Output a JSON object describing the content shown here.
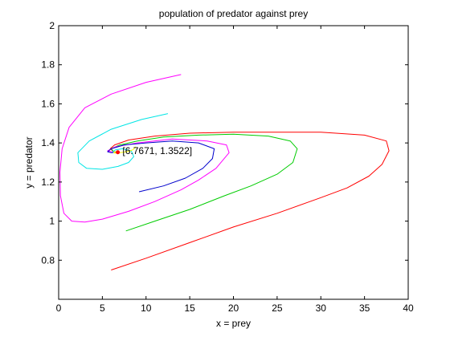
{
  "chart_data": {
    "type": "line",
    "title": "population of predator against prey",
    "xlabel": "x = prey",
    "ylabel": "y = predator",
    "xlim": [
      0,
      40
    ],
    "ylim": [
      0.6,
      2
    ],
    "xticks": [
      0,
      5,
      10,
      15,
      20,
      25,
      30,
      35,
      40
    ],
    "yticks": [
      0.8,
      1,
      1.2,
      1.4,
      1.6,
      1.8,
      2
    ],
    "xtick_labels": [
      "0",
      "5",
      "10",
      "15",
      "20",
      "25",
      "30",
      "35",
      "40"
    ],
    "ytick_labels": [
      "0.8",
      "1",
      "1.2",
      "1.4",
      "1.6",
      "1.8",
      "2"
    ],
    "grid": false,
    "equilibrium": {
      "x": 6.7671,
      "y": 1.3522,
      "color": "#ff0000"
    },
    "annotation": {
      "text": "[6.7671, 1.3522]",
      "x": 7.3,
      "y": 1.36
    },
    "series": [
      {
        "color": "#ff0000",
        "x": [
          6.0,
          10.0,
          15.0,
          20.0,
          25.0,
          30.0,
          33.0,
          35.5,
          37.0,
          37.8,
          37.5,
          35.0,
          30.0,
          25.0,
          20.0,
          15.0,
          11.0,
          8.0,
          6.4,
          5.9,
          6.3,
          6.76
        ],
        "y": [
          0.75,
          0.81,
          0.89,
          0.97,
          1.04,
          1.12,
          1.17,
          1.23,
          1.29,
          1.36,
          1.41,
          1.44,
          1.455,
          1.455,
          1.455,
          1.45,
          1.435,
          1.415,
          1.39,
          1.37,
          1.355,
          1.352
        ]
      },
      {
        "color": "#00cc00",
        "x": [
          7.7,
          11.0,
          15.0,
          19.0,
          22.0,
          25.0,
          26.8,
          27.3,
          26.5,
          24.0,
          20.0,
          16.0,
          12.0,
          9.0,
          7.0,
          6.0,
          6.3,
          6.76
        ],
        "y": [
          0.95,
          1.0,
          1.06,
          1.13,
          1.18,
          1.24,
          1.3,
          1.37,
          1.41,
          1.435,
          1.445,
          1.44,
          1.43,
          1.41,
          1.39,
          1.37,
          1.355,
          1.352
        ]
      },
      {
        "color": "#ff00ff",
        "x": [
          14.0,
          10.0,
          6.0,
          3.0,
          1.2,
          0.4,
          0.15,
          0.2,
          0.6,
          1.5,
          3.0,
          5.0,
          8.0,
          11.0,
          14.0,
          16.0,
          18.0,
          19.5,
          19.2,
          17.0,
          13.0,
          9.0,
          6.5,
          5.6,
          6.0,
          6.76
        ],
        "y": [
          1.75,
          1.71,
          1.65,
          1.58,
          1.48,
          1.37,
          1.25,
          1.13,
          1.04,
          1.0,
          0.995,
          1.01,
          1.05,
          1.1,
          1.16,
          1.21,
          1.27,
          1.35,
          1.39,
          1.41,
          1.42,
          1.4,
          1.38,
          1.36,
          1.355,
          1.352
        ]
      },
      {
        "color": "#00e5e5",
        "x": [
          12.5,
          9.5,
          6.0,
          3.5,
          2.2,
          2.3,
          3.2,
          5.0,
          6.8,
          8.0,
          8.6,
          8.3,
          7.3,
          6.5,
          6.2,
          6.5,
          6.76
        ],
        "y": [
          1.55,
          1.52,
          1.47,
          1.41,
          1.35,
          1.3,
          1.27,
          1.265,
          1.28,
          1.3,
          1.33,
          1.36,
          1.37,
          1.365,
          1.355,
          1.35,
          1.352
        ]
      },
      {
        "color": "#0000cc",
        "x": [
          9.2,
          12.0,
          14.5,
          16.5,
          17.6,
          17.8,
          16.0,
          13.0,
          10.0,
          7.5,
          6.0,
          5.6,
          6.0,
          6.76
        ],
        "y": [
          1.15,
          1.18,
          1.22,
          1.27,
          1.32,
          1.37,
          1.4,
          1.41,
          1.4,
          1.39,
          1.37,
          1.355,
          1.35,
          1.352
        ]
      },
      {
        "color": "#ffff00",
        "x": [
          8.8,
          8.5,
          7.8,
          7.0,
          6.4,
          6.3,
          6.6,
          6.76
        ],
        "y": [
          1.38,
          1.365,
          1.355,
          1.35,
          1.348,
          1.352,
          1.355,
          1.352
        ]
      }
    ]
  }
}
